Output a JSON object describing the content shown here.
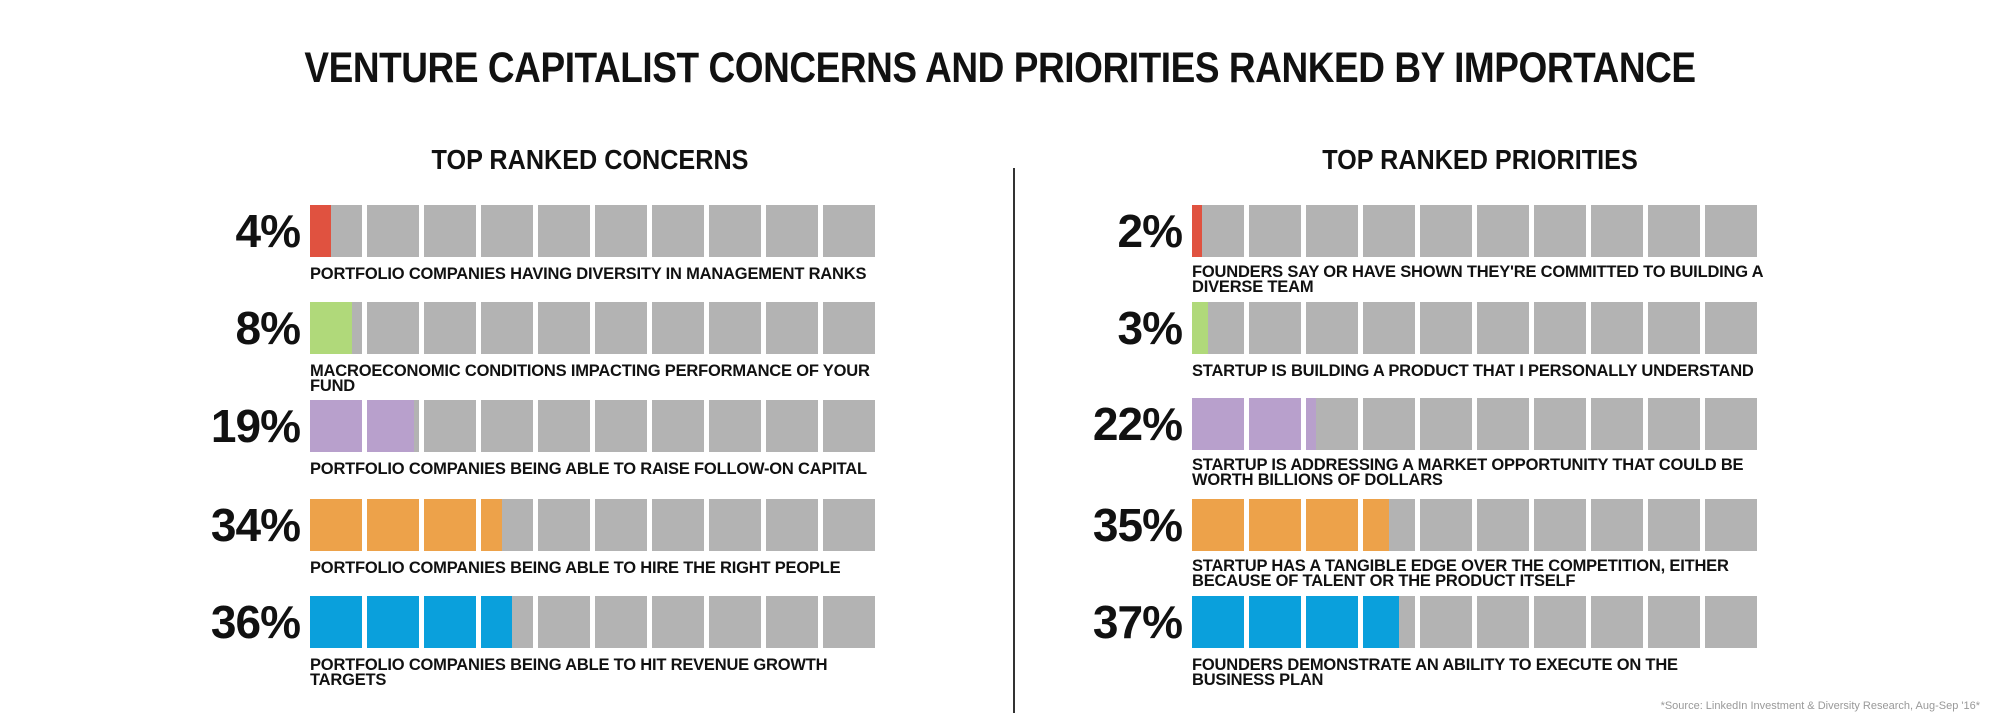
{
  "title": "VENTURE CAPITALIST CONCERNS AND PRIORITIES RANKED BY IMPORTANCE",
  "source": "*Source: LinkedIn Investment & Diversity Research, Aug-Sep '16*",
  "chart_data": [
    {
      "type": "bar",
      "title": "TOP RANKED CONCERNS",
      "max": 100,
      "blocks": 10,
      "categories": [
        "PORTFOLIO COMPANIES HAVING DIVERSITY IN MANAGEMENT RANKS",
        "MACROECONOMIC CONDITIONS IMPACTING PERFORMANCE OF YOUR FUND",
        "PORTFOLIO COMPANIES BEING ABLE TO RAISE FOLLOW-ON CAPITAL",
        "PORTFOLIO COMPANIES BEING ABLE TO HIRE THE RIGHT PEOPLE",
        "PORTFOLIO COMPANIES BEING ABLE TO HIT REVENUE GROWTH TARGETS"
      ],
      "values": [
        4,
        8,
        19,
        34,
        36
      ],
      "value_labels": [
        "4%",
        "8%",
        "19%",
        "34%",
        "36%"
      ],
      "colors": [
        "#e05240",
        "#b0d97a",
        "#b8a0cc",
        "#eda24a",
        "#0aa0dc"
      ]
    },
    {
      "type": "bar",
      "title": "TOP RANKED PRIORITIES",
      "max": 100,
      "blocks": 10,
      "categories": [
        "FOUNDERS SAY OR HAVE SHOWN THEY'RE COMMITTED TO BUILDING A DIVERSE TEAM",
        "STARTUP IS BUILDING A PRODUCT THAT I PERSONALLY UNDERSTAND",
        "STARTUP IS ADDRESSING A MARKET OPPORTUNITY THAT COULD BE WORTH BILLIONS OF DOLLARS",
        "STARTUP HAS A TANGIBLE EDGE OVER THE COMPETITION, EITHER BECAUSE OF TALENT OR THE PRODUCT ITSELF",
        "FOUNDERS DEMONSTRATE AN ABILITY TO EXECUTE ON THE BUSINESS PLAN"
      ],
      "values": [
        2,
        3,
        22,
        35,
        37
      ],
      "value_labels": [
        "2%",
        "3%",
        "22%",
        "35%",
        "37%"
      ],
      "colors": [
        "#e05240",
        "#b0d97a",
        "#b8a0cc",
        "#eda24a",
        "#0aa0dc"
      ]
    }
  ]
}
